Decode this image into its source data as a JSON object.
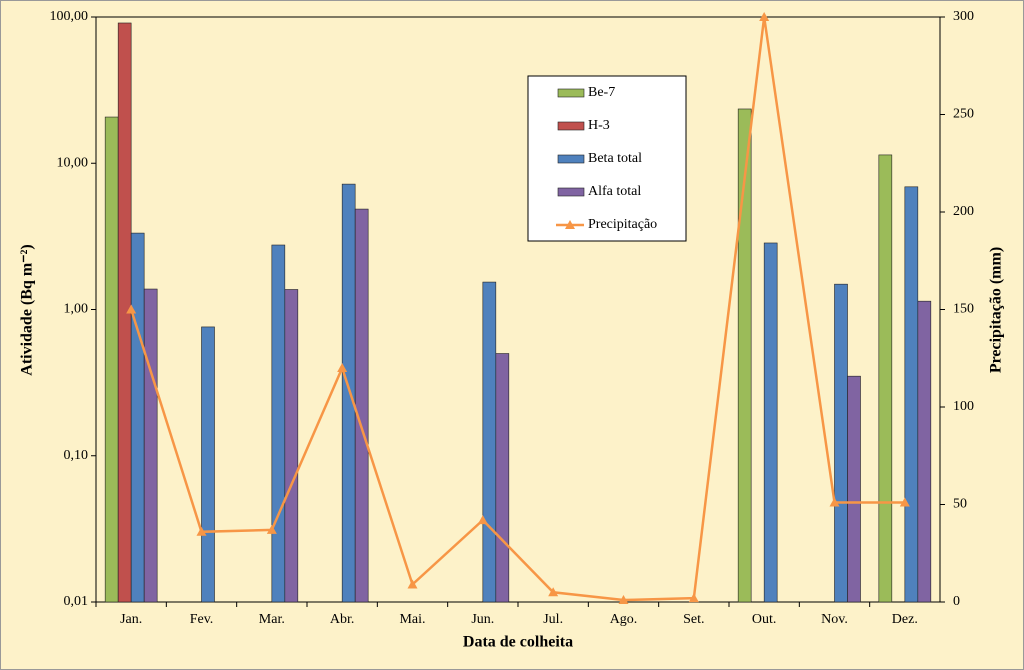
{
  "chart_data": {
    "type": "bar",
    "x_label": "Data de colheita",
    "y_label": "Atividade (Bq m⁻²)",
    "y2_label": "Precipitação (mm)",
    "categories": [
      "Jan.",
      "Fev.",
      "Mar.",
      "Abr.",
      "Mai.",
      "Jun.",
      "Jul.",
      "Ago.",
      "Set.",
      "Out.",
      "Nov.",
      "Dez."
    ],
    "ylog": true,
    "ylim": [
      0.01,
      100
    ],
    "yticks": [
      {
        "value": 0.01,
        "label": "0,01"
      },
      {
        "value": 0.1,
        "label": "0,10"
      },
      {
        "value": 1,
        "label": "1,00"
      },
      {
        "value": 10,
        "label": "10,00"
      },
      {
        "value": 100,
        "label": "100,00"
      }
    ],
    "y2lim": [
      0,
      300
    ],
    "y2ticks": [
      0,
      50,
      100,
      150,
      200,
      250,
      300
    ],
    "grid": false,
    "legend": "top-center",
    "series": [
      {
        "name": "Be-7",
        "color": "#9bbb59",
        "values": [
          20.7,
          null,
          null,
          null,
          null,
          null,
          null,
          null,
          null,
          23.5,
          null,
          11.4
        ]
      },
      {
        "name": "H-3",
        "color": "#c0504d",
        "values": [
          91,
          null,
          null,
          null,
          null,
          null,
          null,
          null,
          null,
          null,
          null,
          null
        ]
      },
      {
        "name": "Beta total",
        "color": "#4f81bd",
        "values": [
          3.33,
          0.76,
          2.76,
          7.2,
          null,
          1.54,
          null,
          null,
          null,
          2.85,
          1.49,
          6.9
        ]
      },
      {
        "name": "Alfa total",
        "color": "#8064a2",
        "values": [
          1.38,
          null,
          1.37,
          4.86,
          null,
          0.5,
          null,
          null,
          null,
          null,
          0.35,
          1.14
        ]
      },
      {
        "name": "Precipitação",
        "color": "#f79646",
        "type": "line",
        "axis": "y2",
        "values": [
          150,
          36,
          37,
          120,
          9,
          42,
          5,
          1,
          2,
          300,
          51,
          51
        ]
      }
    ]
  }
}
